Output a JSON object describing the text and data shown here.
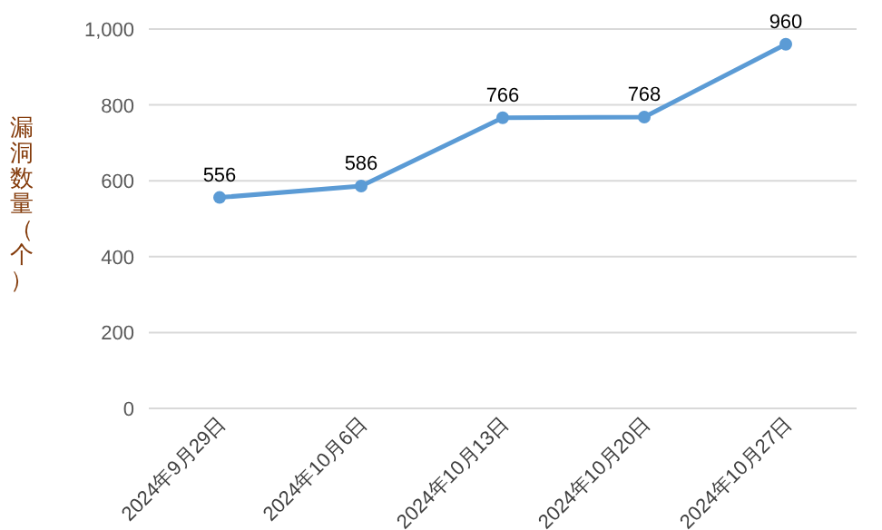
{
  "chart_data": {
    "type": "line",
    "ylabel": "漏洞数量（个）",
    "categories": [
      "2024年9月29日",
      "2024年10月6日",
      "2024年10月13日",
      "2024年10月20日",
      "2024年10月27日"
    ],
    "series": [
      {
        "color": "#5b9bd5",
        "values": [
          556,
          586,
          766,
          768,
          960
        ]
      }
    ],
    "ylim": [
      0,
      1000
    ],
    "yticks": [
      0,
      200,
      400,
      600,
      800,
      {
        "value": 1000,
        "label": "1,000"
      }
    ],
    "grid": "y",
    "marker": "circle",
    "line_style": "solid",
    "data_labels": true
  }
}
